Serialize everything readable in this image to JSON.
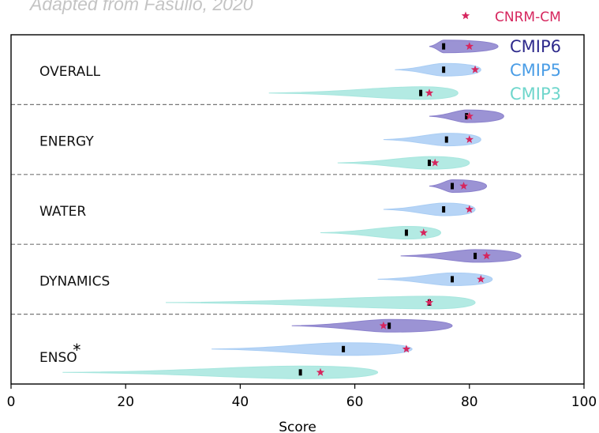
{
  "caption": "Adapted from Fasullo, 2020",
  "chart_data": {
    "type": "violin",
    "xlabel": "Score",
    "xlim": [
      0,
      100
    ],
    "xticks": [
      0,
      20,
      40,
      60,
      80,
      100
    ],
    "xtick_labels": [
      "0",
      "20",
      "40",
      "60",
      "80",
      "100"
    ],
    "categories": [
      "OVERALL",
      "ENERGY",
      "WATER",
      "DYNAMICS",
      "ENSO"
    ],
    "category_footnotes": {
      "ENSO": "*"
    },
    "marker_legend": {
      "label": "CNRM-CM",
      "color": "#d6265e",
      "symbol": "★"
    },
    "series": [
      {
        "name": "CMIP6",
        "fill": "#8a80cc",
        "text_color": "#2e2a8c",
        "ranges": [
          [
            73,
            85
          ],
          [
            73,
            86
          ],
          [
            73,
            83
          ],
          [
            68,
            89
          ],
          [
            49,
            77
          ]
        ],
        "medians": [
          75.5,
          79.5,
          77,
          81,
          66
        ],
        "cnrm": [
          80,
          80,
          79,
          83,
          65
        ]
      },
      {
        "name": "CMIP5",
        "fill": "#a9cdf4",
        "text_color": "#4a9de6",
        "ranges": [
          [
            67,
            82
          ],
          [
            65,
            82
          ],
          [
            65,
            81
          ],
          [
            64,
            84
          ],
          [
            35,
            70
          ]
        ],
        "medians": [
          75.5,
          76,
          75.5,
          77,
          58
        ],
        "cnrm": [
          81,
          80,
          80,
          82,
          69
        ]
      },
      {
        "name": "CMIP3",
        "fill": "#a6e6de",
        "text_color": "#6fd6cc",
        "ranges": [
          [
            45,
            78
          ],
          [
            57,
            80
          ],
          [
            54,
            75
          ],
          [
            27,
            81
          ],
          [
            9,
            64
          ]
        ],
        "medians": [
          71.5,
          73,
          69,
          73,
          50.5
        ],
        "cnrm": [
          73,
          74,
          72,
          73,
          54
        ]
      }
    ],
    "grid": false,
    "legend_position": "top-right"
  }
}
